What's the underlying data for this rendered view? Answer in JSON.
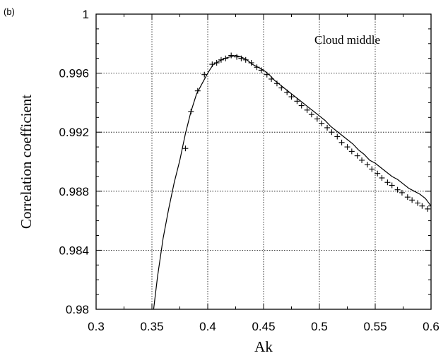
{
  "panel_label": "(b)",
  "chart_data": {
    "type": "line",
    "title": "",
    "xlabel": "Ak",
    "ylabel": "Correlation coefficient",
    "annotation": "Cloud middle",
    "xlim": [
      0.3,
      0.6
    ],
    "ylim": [
      0.98,
      1.0
    ],
    "xticks": [
      0.3,
      0.35,
      0.4,
      0.45,
      0.5,
      0.55,
      0.6
    ],
    "xtick_labels": [
      "0.3",
      "0.35",
      "0.4",
      "0.45",
      "0.5",
      "0.55",
      "0.6"
    ],
    "yticks": [
      0.98,
      0.984,
      0.988,
      0.992,
      0.996,
      1.0
    ],
    "ytick_labels": [
      "0.98",
      "0.984",
      "0.988",
      "0.992",
      "0.996",
      "1"
    ],
    "grid": true,
    "marker": "plus",
    "series": [
      {
        "x": [
          0.3515,
          0.355,
          0.36,
          0.365,
          0.37,
          0.375,
          0.38,
          0.385,
          0.39,
          0.395,
          0.4,
          0.405,
          0.41,
          0.415,
          0.42,
          0.425,
          0.43,
          0.435,
          0.44,
          0.445,
          0.45,
          0.455,
          0.46,
          0.465,
          0.47,
          0.475,
          0.48,
          0.485,
          0.49,
          0.495,
          0.5,
          0.505,
          0.51,
          0.515,
          0.52,
          0.525,
          0.53,
          0.535,
          0.54,
          0.545,
          0.55,
          0.555,
          0.56,
          0.565,
          0.57,
          0.575,
          0.58,
          0.585,
          0.59,
          0.595,
          0.6
        ],
        "y": [
          0.98,
          0.9822,
          0.9848,
          0.9868,
          0.9886,
          0.9901,
          0.9919,
          0.9934,
          0.9946,
          0.9953,
          0.996,
          0.9966,
          0.9968,
          0.997,
          0.9971,
          0.9972,
          0.9971,
          0.9969,
          0.9966,
          0.9964,
          0.9962,
          0.9959,
          0.9955,
          0.9952,
          0.9949,
          0.9946,
          0.9943,
          0.994,
          0.9937,
          0.9934,
          0.9931,
          0.9928,
          0.9924,
          0.9921,
          0.9918,
          0.9915,
          0.9912,
          0.9908,
          0.9905,
          0.9901,
          0.9899,
          0.9896,
          0.9893,
          0.989,
          0.9888,
          0.9885,
          0.9882,
          0.988,
          0.9878,
          0.9875,
          0.987
        ],
        "marker_x": [
          0.38,
          0.385,
          0.391,
          0.397,
          0.404,
          0.408,
          0.412,
          0.416,
          0.421,
          0.426,
          0.43,
          0.434,
          0.439,
          0.444,
          0.448,
          0.453,
          0.457,
          0.462,
          0.466,
          0.471,
          0.475,
          0.48,
          0.484,
          0.489,
          0.493,
          0.498,
          0.502,
          0.507,
          0.511,
          0.516,
          0.52,
          0.525,
          0.529,
          0.534,
          0.538,
          0.543,
          0.547,
          0.552,
          0.556,
          0.561,
          0.565,
          0.57,
          0.574,
          0.579,
          0.583,
          0.588,
          0.592,
          0.597
        ],
        "marker_y": [
          0.9909,
          0.9934,
          0.9948,
          0.9959,
          0.9966,
          0.9967,
          0.9969,
          0.997,
          0.9972,
          0.9971,
          0.997,
          0.9969,
          0.9967,
          0.9964,
          0.9962,
          0.9959,
          0.9956,
          0.9953,
          0.995,
          0.9947,
          0.9944,
          0.9941,
          0.9938,
          0.9935,
          0.9932,
          0.9929,
          0.9926,
          0.9923,
          0.992,
          0.9917,
          0.9913,
          0.991,
          0.9907,
          0.9904,
          0.9901,
          0.9898,
          0.9895,
          0.9892,
          0.9889,
          0.9886,
          0.9884,
          0.9881,
          0.9879,
          0.9876,
          0.9874,
          0.9872,
          0.987,
          0.9868
        ]
      }
    ]
  }
}
